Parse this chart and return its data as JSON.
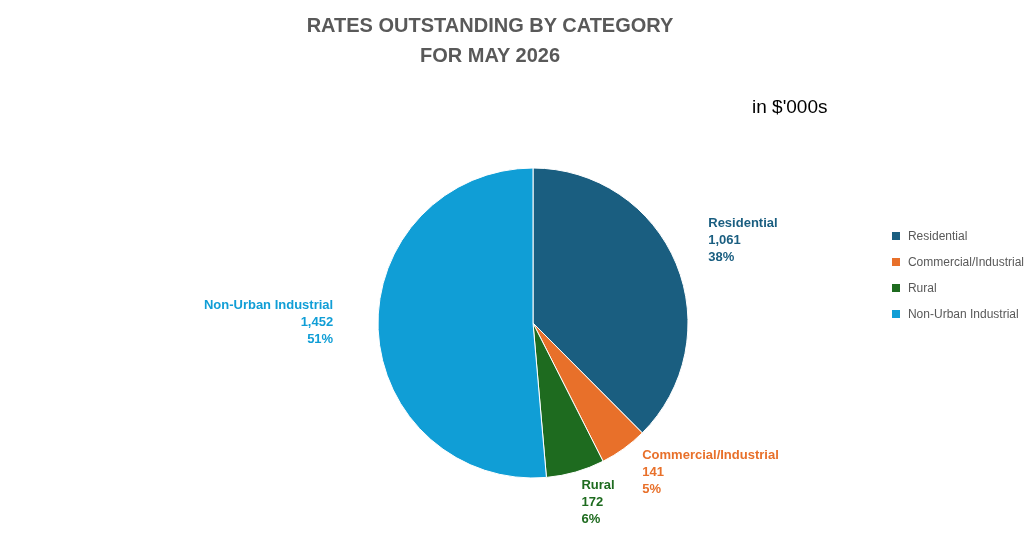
{
  "chart_data": {
    "type": "pie",
    "title": "RATES OUTSTANDING BY CATEGORY\nFOR MAY 2026",
    "annotations": [
      "in $'000s"
    ],
    "categories": [
      "Residential",
      "Commercial/Industrial",
      "Rural",
      "Non-Urban Industrial"
    ],
    "values": [
      1061,
      141,
      172,
      1452
    ],
    "colors": [
      "#1a5e80",
      "#e8702a",
      "#1e6b1f",
      "#109ed6"
    ],
    "value_labels": [
      "1,061\n38%",
      "141\n5%",
      "172\n6%",
      "1,452\n51%"
    ],
    "legend": "right"
  }
}
